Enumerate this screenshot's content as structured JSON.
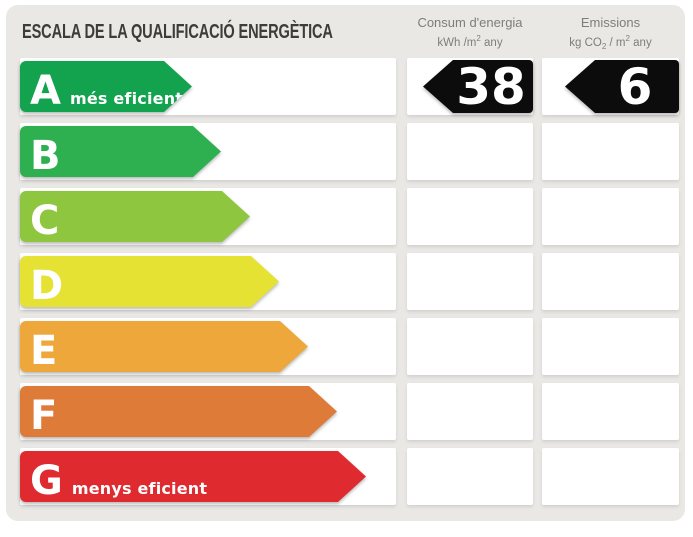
{
  "title": "ESCALA DE LA QUALIFICACIÓ ENERGÈTICA",
  "columns": {
    "consum": {
      "name": "Consum d'energia",
      "unit_pre": "kWh /m",
      "unit_sup": "2",
      "unit_post": " any"
    },
    "emissions": {
      "name": "Emissions",
      "unit_pre": "kg CO",
      "unit_sub": "2",
      "unit_mid": " / m",
      "unit_sup": "2",
      "unit_post": " any"
    }
  },
  "rows": [
    {
      "grade": "A",
      "note": "més eficient",
      "color": "#13A24E",
      "arrow_width": 172,
      "consum": "38",
      "emissions": "6"
    },
    {
      "grade": "B",
      "note": "",
      "color": "#2EB051",
      "arrow_width": 201,
      "consum": "",
      "emissions": ""
    },
    {
      "grade": "C",
      "note": "",
      "color": "#8EC63F",
      "arrow_width": 230,
      "consum": "",
      "emissions": ""
    },
    {
      "grade": "D",
      "note": "",
      "color": "#E5E234",
      "arrow_width": 259,
      "consum": "",
      "emissions": ""
    },
    {
      "grade": "E",
      "note": "",
      "color": "#EDA73A",
      "arrow_width": 288,
      "consum": "",
      "emissions": ""
    },
    {
      "grade": "F",
      "note": "",
      "color": "#DE7B39",
      "arrow_width": 317,
      "consum": "",
      "emissions": ""
    },
    {
      "grade": "G",
      "note": "menys eficient",
      "color": "#DF2B30",
      "arrow_width": 346,
      "consum": "",
      "emissions": ""
    }
  ],
  "colors": {
    "card_bg": "#E9E8E5",
    "value_arrow_bg": "#0C0C0C",
    "title_text": "#3C3C3B",
    "header_text": "#7D7D7C",
    "cell_bg": "#FFFFFF"
  },
  "chart_data": {
    "type": "bar",
    "title": "ESCALA DE LA QUALIFICACIÓ ENERGÈTICA",
    "categories": [
      "A",
      "B",
      "C",
      "D",
      "E",
      "F",
      "G"
    ],
    "series": [
      {
        "name": "scale-arrow-relative-length",
        "values": [
          1,
          2,
          3,
          4,
          5,
          6,
          7
        ]
      }
    ],
    "category_colors": [
      "#13A24E",
      "#2EB051",
      "#8EC63F",
      "#E5E234",
      "#EDA73A",
      "#DE7B39",
      "#DF2B30"
    ],
    "category_notes": {
      "A": "més eficient",
      "G": "menys eficient"
    },
    "value_columns": [
      "Consum d'energia kWh /m² any",
      "Emissions kg CO₂ / m² any"
    ],
    "assigned_rating": "A",
    "consum_kwh_m2_any": 38,
    "emissions_kg_co2_m2_any": 6,
    "legend": false,
    "grid": false
  }
}
